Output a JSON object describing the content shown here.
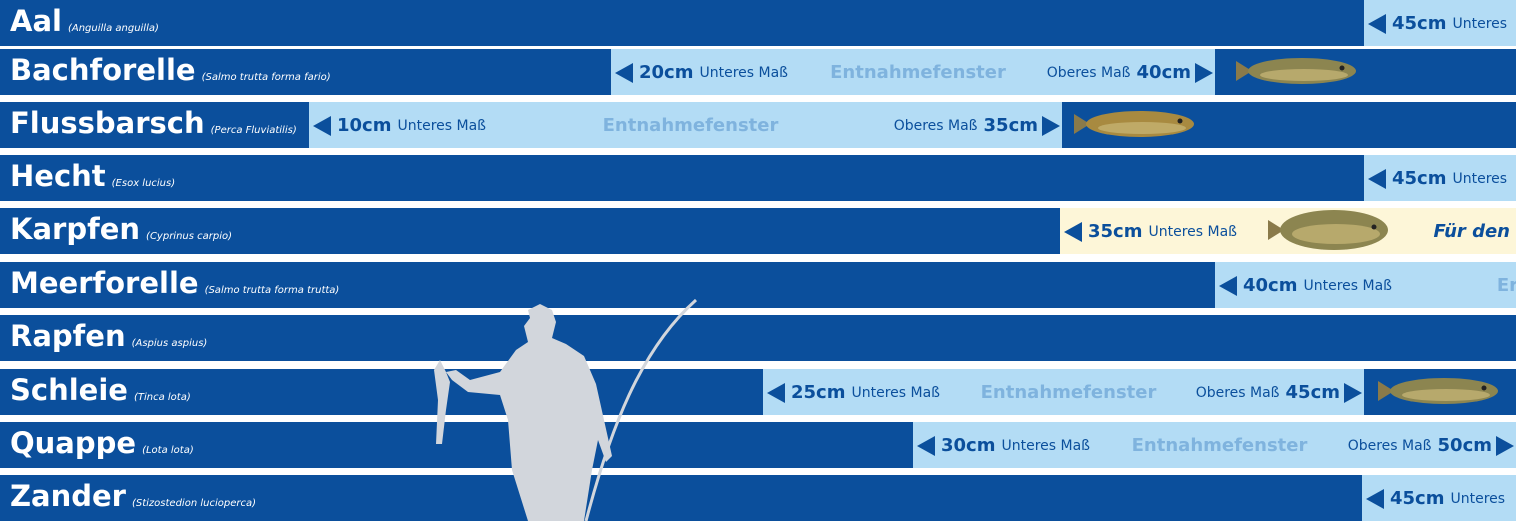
{
  "rows": [
    {
      "name": "Aal",
      "latin": "(Anguilla anguilla)",
      "lower": "45cm",
      "lower_label": "Unteres"
    },
    {
      "name": "Bachforelle",
      "latin": "(Salmo trutta forma fario)",
      "lower": "20cm",
      "lower_label": "Unteres Maß",
      "window": "Entnahmefenster",
      "upper_label": "Oberes Maß",
      "upper": "40cm"
    },
    {
      "name": "Flussbarsch",
      "latin": "(Perca Fluviatilis)",
      "lower": "10cm",
      "lower_label": "Unteres Maß",
      "window": "Entnahmefenster",
      "upper_label": "Oberes Maß",
      "upper": "35cm"
    },
    {
      "name": "Hecht",
      "latin": "(Esox lucius)",
      "lower": "45cm",
      "lower_label": "Unteres"
    },
    {
      "name": "Karpfen",
      "latin": "(Cyprinus carpio)",
      "lower": "35cm",
      "lower_label": "Unteres Maß",
      "window": "Für den"
    },
    {
      "name": "Meerforelle",
      "latin": "(Salmo trutta forma trutta)",
      "lower": "40cm",
      "lower_label": "Unteres Maß",
      "window": "Er"
    },
    {
      "name": "Rapfen",
      "latin": "(Aspius aspius)"
    },
    {
      "name": "Schleie",
      "latin": "(Tinca lota)",
      "lower": "25cm",
      "lower_label": "Unteres Maß",
      "window": "Entnahmefenster",
      "upper_label": "Oberes Maß",
      "upper": "45cm"
    },
    {
      "name": "Quappe",
      "latin": "(Lota lota)",
      "lower": "30cm",
      "lower_label": "Unteres Maß",
      "window": "Entnahmefenster",
      "upper_label": "Oberes Maß",
      "upper": "50cm"
    },
    {
      "name": "Zander",
      "latin": "(Stizostedion lucioperca)",
      "lower": "45cm",
      "lower_label": "Unteres"
    }
  ]
}
